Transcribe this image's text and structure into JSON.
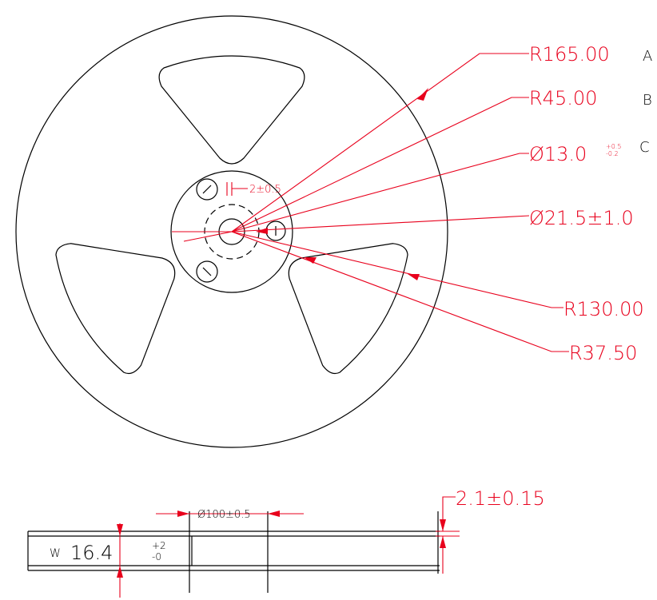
{
  "callouts": [
    {
      "text": "R165.00",
      "letter": "A"
    },
    {
      "text": "R45.00",
      "letter": "B"
    },
    {
      "text": "Ø13.0",
      "upper": "+0.5",
      "lower": "-0.2",
      "letter": "C"
    },
    {
      "text": "Ø21.5±1.0"
    },
    {
      "text": "R130.00"
    },
    {
      "text": "R37.50"
    }
  ],
  "slot": "2±0.5",
  "side_view": {
    "hub": "Ø100±0.5",
    "thickness": "2.1±0.15",
    "width_label": "W",
    "width": "16.4",
    "upper": "+2",
    "lower": "-0"
  }
}
